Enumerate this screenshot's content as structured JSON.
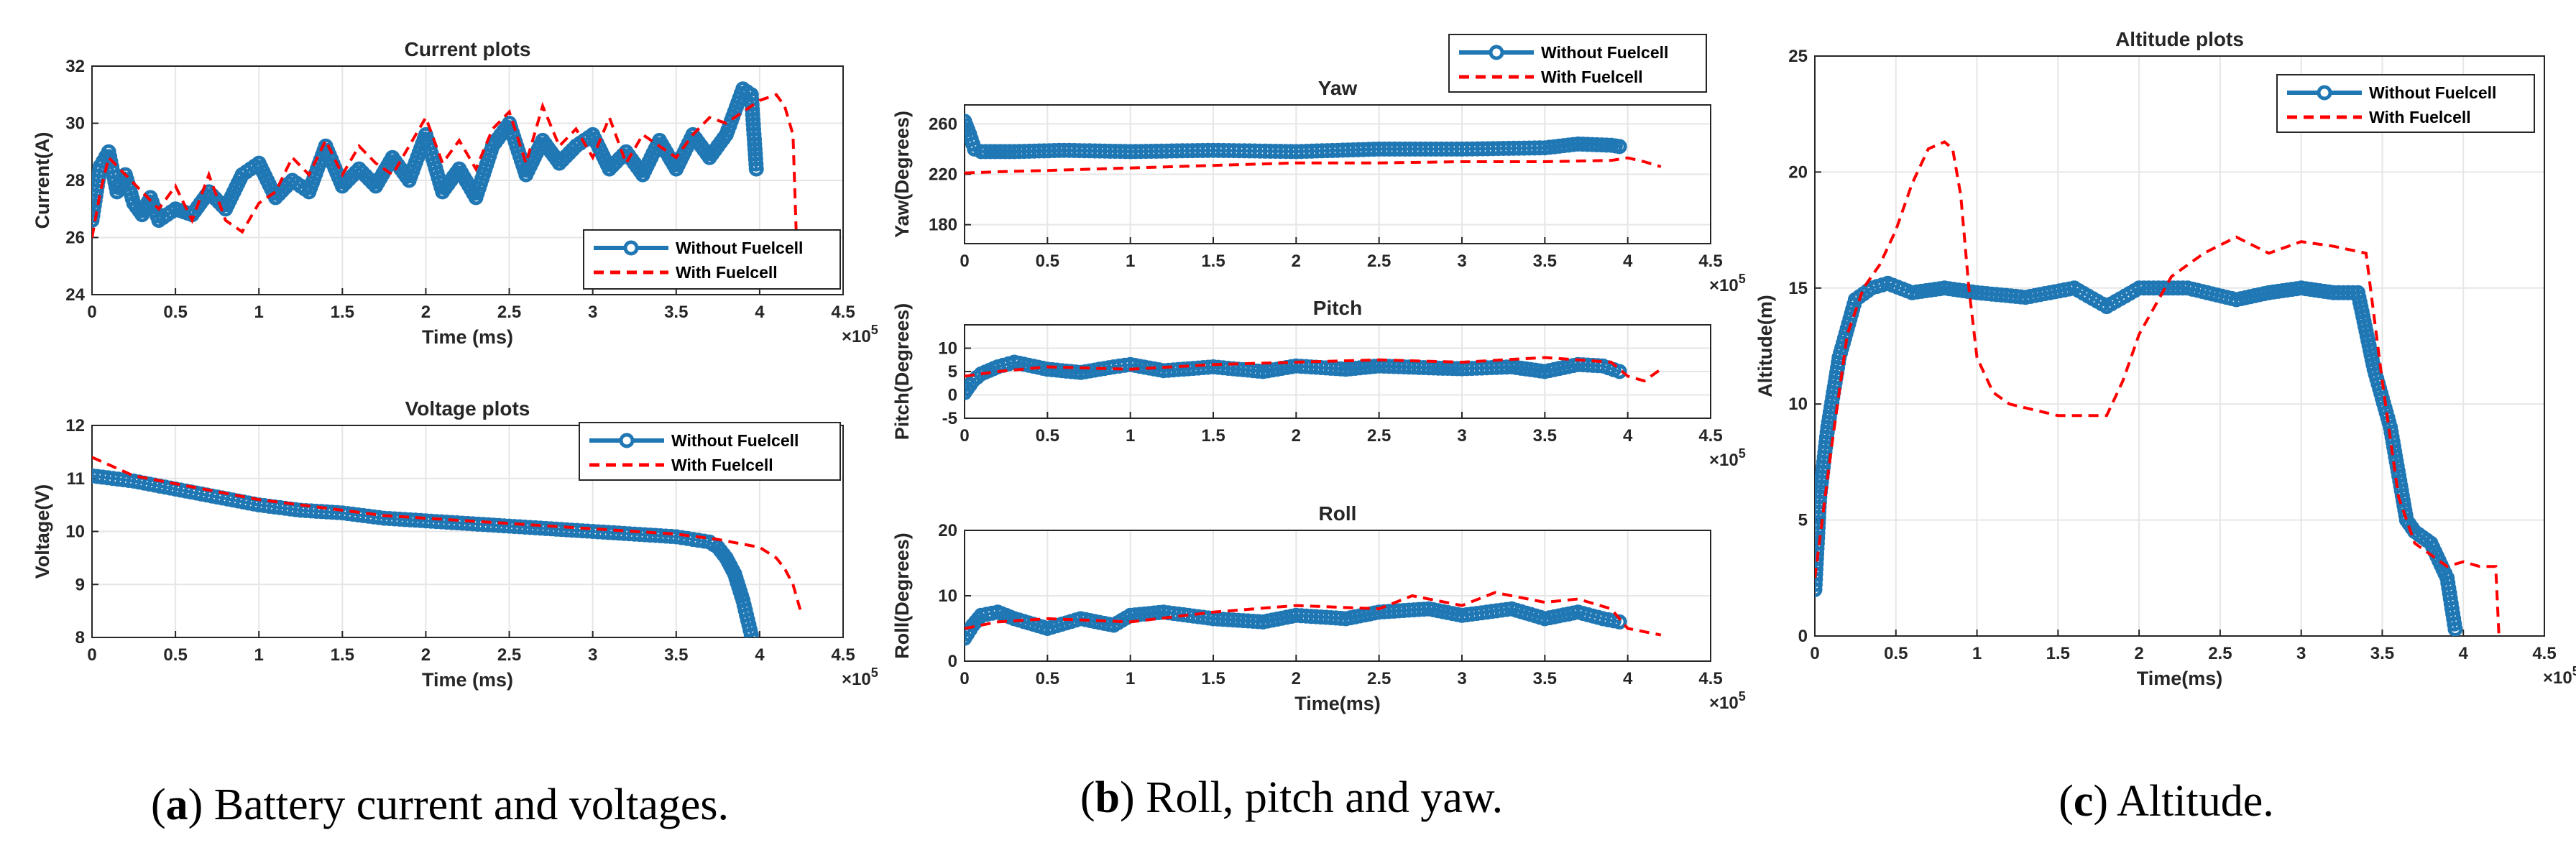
{
  "colors": {
    "without": "#1f77b4",
    "with": "#ff0000",
    "axis": "#262626",
    "grid": "#e6e6e6"
  },
  "legend": {
    "without": "Without Fuelcell",
    "with": "With Fuelcell"
  },
  "exponent": {
    "base": "×10",
    "power": "5"
  },
  "captions": [
    {
      "label": "a",
      "text": " Battery current and voltages."
    },
    {
      "label": "b",
      "text": " Roll, pitch and yaw."
    },
    {
      "label": "c",
      "text": " Altitude."
    }
  ],
  "chart_data": [
    {
      "id": "current",
      "type": "line",
      "title": "Current plots",
      "xlabel": "Time (ms)",
      "ylabel": "Current(A)",
      "xlim": [
        0,
        4.5
      ],
      "ylim": [
        24,
        32
      ],
      "xunit_multiplier": 100000,
      "xticks": [
        "0",
        "0.5",
        "1",
        "1.5",
        "2",
        "2.5",
        "3",
        "3.5",
        "4",
        "4.5"
      ],
      "yticks": [
        "24",
        "26",
        "28",
        "30",
        "32"
      ],
      "legend_position": "bottom-right",
      "grid": true,
      "series": [
        {
          "name": "Without Fuelcell",
          "style": "line-marker",
          "x": [
            0,
            0.05,
            0.1,
            0.15,
            0.2,
            0.25,
            0.3,
            0.35,
            0.4,
            0.5,
            0.6,
            0.7,
            0.8,
            0.9,
            1.0,
            1.1,
            1.2,
            1.3,
            1.4,
            1.5,
            1.6,
            1.7,
            1.8,
            1.9,
            2.0,
            2.1,
            2.2,
            2.3,
            2.4,
            2.5,
            2.6,
            2.7,
            2.8,
            2.9,
            3.0,
            3.1,
            3.2,
            3.3,
            3.4,
            3.5,
            3.6,
            3.7,
            3.8,
            3.85,
            3.9,
            3.95,
            3.98
          ],
          "y": [
            26.6,
            28.5,
            29.0,
            27.6,
            28.2,
            27.2,
            26.8,
            27.4,
            26.6,
            27.0,
            26.8,
            27.6,
            27.0,
            28.2,
            28.6,
            27.4,
            28.0,
            27.6,
            29.2,
            27.8,
            28.4,
            27.8,
            28.8,
            28.0,
            29.6,
            27.6,
            28.4,
            27.4,
            29.2,
            30.0,
            28.2,
            29.4,
            28.6,
            29.2,
            29.6,
            28.4,
            29.0,
            28.2,
            29.4,
            28.4,
            29.6,
            28.8,
            29.6,
            30.4,
            31.2,
            31.0,
            28.4
          ]
        },
        {
          "name": "With Fuelcell",
          "style": "dashed",
          "x": [
            0,
            0.05,
            0.1,
            0.2,
            0.3,
            0.4,
            0.5,
            0.6,
            0.7,
            0.8,
            0.9,
            1.0,
            1.1,
            1.2,
            1.3,
            1.4,
            1.5,
            1.6,
            1.7,
            1.8,
            1.9,
            2.0,
            2.1,
            2.2,
            2.3,
            2.4,
            2.5,
            2.6,
            2.7,
            2.8,
            2.9,
            3.0,
            3.1,
            3.2,
            3.3,
            3.4,
            3.5,
            3.6,
            3.7,
            3.8,
            3.9,
            4.0,
            4.1,
            4.15,
            4.2,
            4.22
          ],
          "y": [
            26.0,
            27.6,
            28.8,
            28.2,
            27.6,
            27.0,
            27.8,
            26.6,
            28.2,
            26.6,
            26.2,
            27.2,
            27.6,
            28.8,
            28.2,
            29.4,
            28.2,
            29.2,
            28.6,
            28.2,
            29.2,
            30.2,
            28.6,
            29.4,
            28.4,
            29.8,
            30.4,
            28.6,
            30.6,
            29.2,
            29.8,
            28.8,
            30.2,
            28.6,
            29.6,
            29.2,
            28.8,
            29.6,
            30.2,
            30.0,
            30.4,
            30.8,
            31.0,
            30.6,
            29.6,
            26.0
          ]
        }
      ]
    },
    {
      "id": "voltage",
      "type": "line",
      "title": "Voltage plots",
      "xlabel": "Time (ms)",
      "ylabel": "Voltage(V)",
      "xlim": [
        0,
        4.5
      ],
      "ylim": [
        8,
        12
      ],
      "xunit_multiplier": 100000,
      "xticks": [
        "0",
        "0.5",
        "1",
        "1.5",
        "2",
        "2.5",
        "3",
        "3.5",
        "4",
        "4.5"
      ],
      "yticks": [
        "8",
        "9",
        "10",
        "11",
        "12"
      ],
      "legend_position": "top-right",
      "grid": true,
      "series": [
        {
          "name": "Without Fuelcell",
          "style": "line-marker",
          "x": [
            0,
            0.25,
            0.5,
            0.75,
            1.0,
            1.25,
            1.5,
            1.75,
            2.0,
            2.25,
            2.5,
            2.75,
            3.0,
            3.25,
            3.5,
            3.6,
            3.7,
            3.75,
            3.8,
            3.85,
            3.9,
            3.95
          ],
          "y": [
            11.05,
            10.95,
            10.8,
            10.65,
            10.5,
            10.4,
            10.35,
            10.25,
            10.2,
            10.15,
            10.1,
            10.05,
            10.0,
            9.95,
            9.9,
            9.85,
            9.8,
            9.7,
            9.5,
            9.2,
            8.7,
            8.05
          ]
        },
        {
          "name": "With Fuelcell",
          "style": "dashed",
          "x": [
            0,
            0.25,
            0.5,
            0.75,
            1.0,
            1.25,
            1.5,
            1.75,
            2.0,
            2.25,
            2.5,
            2.75,
            3.0,
            3.25,
            3.5,
            3.75,
            4.0,
            4.1,
            4.15,
            4.2,
            4.25
          ],
          "y": [
            11.4,
            11.05,
            10.9,
            10.75,
            10.6,
            10.5,
            10.4,
            10.3,
            10.25,
            10.2,
            10.15,
            10.1,
            10.05,
            10.0,
            9.95,
            9.85,
            9.7,
            9.5,
            9.3,
            9.0,
            8.45
          ]
        }
      ]
    },
    {
      "id": "yaw",
      "type": "line",
      "title": "Yaw",
      "xlabel": "",
      "ylabel": "Yaw(Degrees)",
      "xlim": [
        0,
        4.5
      ],
      "ylim": [
        165,
        275
      ],
      "xunit_multiplier": 100000,
      "xticks": [
        "0",
        "0.5",
        "1",
        "1.5",
        "2",
        "2.5",
        "3",
        "3.5",
        "4",
        "4.5"
      ],
      "yticks": [
        "180",
        "220",
        "260"
      ],
      "legend_position": "outside-top-right",
      "grid": true,
      "series": [
        {
          "name": "Without Fuelcell",
          "style": "line-marker",
          "x": [
            0,
            0.03,
            0.06,
            0.1,
            0.3,
            0.6,
            1.0,
            1.5,
            2.0,
            2.5,
            3.0,
            3.5,
            3.7,
            3.9,
            3.95
          ],
          "y": [
            262,
            252,
            240,
            238,
            238,
            239,
            238,
            239,
            238,
            240,
            240,
            241,
            244,
            243,
            242
          ]
        },
        {
          "name": "With Fuelcell",
          "style": "dashed",
          "x": [
            0,
            0.2,
            0.5,
            1.0,
            1.5,
            2.0,
            2.5,
            3.0,
            3.5,
            3.9,
            4.0,
            4.1,
            4.2
          ],
          "y": [
            221,
            222,
            223,
            225,
            227,
            229,
            229,
            230,
            230,
            231,
            233,
            230,
            226
          ]
        }
      ]
    },
    {
      "id": "pitch",
      "type": "line",
      "title": "Pitch",
      "xlabel": "",
      "ylabel": "Pitch(Degrees)",
      "xlim": [
        0,
        4.5
      ],
      "ylim": [
        -5,
        15
      ],
      "xunit_multiplier": 100000,
      "xticks": [
        "0",
        "0.5",
        "1",
        "1.5",
        "2",
        "2.5",
        "3",
        "3.5",
        "4",
        "4.5"
      ],
      "yticks": [
        "-5",
        "0",
        "5",
        "10"
      ],
      "grid": true,
      "series": [
        {
          "name": "Without Fuelcell",
          "style": "line-marker",
          "x": [
            0,
            0.05,
            0.1,
            0.2,
            0.3,
            0.5,
            0.7,
            0.9,
            1.0,
            1.2,
            1.5,
            1.8,
            2.0,
            2.3,
            2.5,
            2.8,
            3.0,
            3.3,
            3.5,
            3.7,
            3.85,
            3.95
          ],
          "y": [
            0.5,
            3.0,
            4.5,
            6.0,
            7.0,
            5.5,
            4.8,
            6.0,
            6.5,
            5.2,
            6.0,
            5.0,
            6.2,
            5.5,
            6.2,
            5.8,
            5.6,
            6.0,
            5.0,
            6.5,
            6.2,
            5.0
          ]
        },
        {
          "name": "With Fuelcell",
          "style": "dashed",
          "x": [
            0,
            0.2,
            0.5,
            1.0,
            1.5,
            2.0,
            2.5,
            3.0,
            3.5,
            3.9,
            4.0,
            4.1,
            4.2
          ],
          "y": [
            4.0,
            5.0,
            6.0,
            5.5,
            6.5,
            7.0,
            7.5,
            7.0,
            8.0,
            7.0,
            4.0,
            3.0,
            5.5
          ]
        }
      ]
    },
    {
      "id": "roll",
      "type": "line",
      "title": "Roll",
      "xlabel": "Time(ms)",
      "ylabel": "Roll(Degrees)",
      "xlim": [
        0,
        4.5
      ],
      "ylim": [
        0,
        20
      ],
      "xunit_multiplier": 100000,
      "xticks": [
        "0",
        "0.5",
        "1",
        "1.5",
        "2",
        "2.5",
        "3",
        "3.5",
        "4",
        "4.5"
      ],
      "yticks": [
        "0",
        "10",
        "20"
      ],
      "grid": true,
      "series": [
        {
          "name": "Without Fuelcell",
          "style": "line-marker",
          "x": [
            0,
            0.05,
            0.1,
            0.2,
            0.3,
            0.5,
            0.7,
            0.9,
            1.0,
            1.2,
            1.5,
            1.8,
            2.0,
            2.3,
            2.5,
            2.8,
            3.0,
            3.3,
            3.5,
            3.7,
            3.85,
            3.95
          ],
          "y": [
            3.5,
            5.5,
            7.0,
            7.5,
            6.5,
            5.0,
            6.5,
            5.5,
            7.0,
            7.5,
            6.5,
            6.0,
            7.0,
            6.5,
            7.5,
            8.0,
            7.0,
            8.0,
            6.5,
            7.5,
            6.5,
            6.0
          ]
        },
        {
          "name": "With Fuelcell",
          "style": "dashed",
          "x": [
            0,
            0.2,
            0.5,
            1.0,
            1.5,
            2.0,
            2.5,
            2.7,
            3.0,
            3.2,
            3.5,
            3.7,
            3.9,
            4.0,
            4.2
          ],
          "y": [
            5.0,
            6.0,
            6.5,
            6.0,
            7.5,
            8.5,
            8.0,
            10.0,
            8.5,
            10.5,
            9.0,
            9.5,
            8.0,
            5.0,
            4.0
          ]
        }
      ]
    },
    {
      "id": "altitude",
      "type": "line",
      "title": "Altitude plots",
      "xlabel": "Time(ms)",
      "ylabel": "Altitude(m)",
      "xlim": [
        0,
        4.5
      ],
      "ylim": [
        0,
        25
      ],
      "xunit_multiplier": 100000,
      "xticks": [
        "0",
        "0.5",
        "1",
        "1.5",
        "2",
        "2.5",
        "3",
        "3.5",
        "4",
        "4.5"
      ],
      "yticks": [
        "0",
        "5",
        "10",
        "15",
        "20",
        "25"
      ],
      "legend_position": "top-right",
      "grid": true,
      "series": [
        {
          "name": "Without Fuelcell",
          "style": "line-marker",
          "x": [
            0,
            0.03,
            0.08,
            0.15,
            0.25,
            0.35,
            0.45,
            0.6,
            0.8,
            1.0,
            1.3,
            1.6,
            1.8,
            2.0,
            2.3,
            2.6,
            2.8,
            3.0,
            3.2,
            3.35,
            3.45,
            3.55,
            3.65,
            3.7,
            3.8,
            3.9,
            3.95
          ],
          "y": [
            2.0,
            6.0,
            9.0,
            12.0,
            14.5,
            15.0,
            15.2,
            14.8,
            15.0,
            14.8,
            14.6,
            15.0,
            14.2,
            15.0,
            15.0,
            14.5,
            14.8,
            15.0,
            14.8,
            14.8,
            11.5,
            9.0,
            5.0,
            4.5,
            4.0,
            2.5,
            0.3
          ]
        },
        {
          "name": "With Fuelcell",
          "style": "dashed",
          "x": [
            0,
            0.1,
            0.2,
            0.3,
            0.4,
            0.5,
            0.6,
            0.7,
            0.8,
            0.85,
            0.9,
            0.95,
            1.0,
            1.1,
            1.2,
            1.5,
            1.8,
            1.9,
            2.0,
            2.2,
            2.4,
            2.6,
            2.8,
            3.0,
            3.2,
            3.4,
            3.5,
            3.6,
            3.7,
            3.8,
            3.9,
            4.0,
            4.1,
            4.2,
            4.22
          ],
          "y": [
            2.5,
            8.0,
            13.0,
            15.0,
            16.0,
            17.5,
            19.5,
            21.0,
            21.3,
            21.0,
            19.0,
            15.0,
            12.0,
            10.5,
            10.0,
            9.5,
            9.5,
            11.0,
            13.0,
            15.5,
            16.5,
            17.2,
            16.5,
            17.0,
            16.8,
            16.5,
            11.0,
            6.0,
            4.0,
            3.5,
            3.0,
            3.2,
            3.0,
            3.0,
            0.0
          ]
        }
      ]
    }
  ]
}
